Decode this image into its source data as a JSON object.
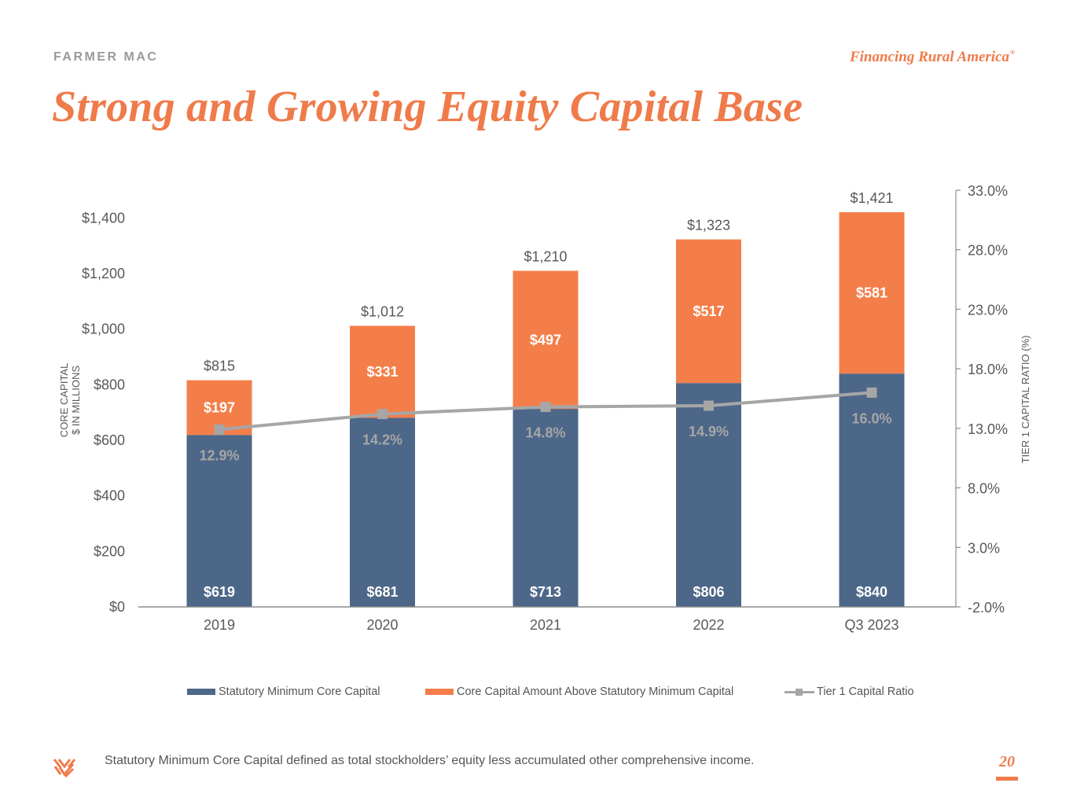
{
  "header": {
    "brand": "FARMER MAC",
    "tagline": "Financing Rural America",
    "tagline_mark": "®",
    "title": "Strong and Growing Equity Capital Base"
  },
  "colors": {
    "accent": "#ef7b4a",
    "statutory": "#4d6788",
    "above": "#f47e4a",
    "ratio": "#a6a6a6"
  },
  "chart_data": {
    "type": "bar",
    "stacked": true,
    "categories": [
      "2019",
      "2020",
      "2021",
      "2022",
      "Q3 2023"
    ],
    "series": [
      {
        "name": "Statutory Minimum Core Capital",
        "type": "bar",
        "axis": "left",
        "values": [
          619,
          681,
          713,
          806,
          840
        ],
        "labels": [
          "$619",
          "$681",
          "$713",
          "$806",
          "$840"
        ]
      },
      {
        "name": "Core Capital Amount Above Statutory Minimum Capital",
        "type": "bar",
        "axis": "left",
        "values": [
          197,
          331,
          497,
          517,
          581
        ],
        "labels": [
          "$197",
          "$331",
          "$497",
          "$517",
          "$581"
        ]
      },
      {
        "name": "Tier 1 Capital Ratio",
        "type": "line",
        "axis": "right",
        "values": [
          12.9,
          14.2,
          14.8,
          14.9,
          16.0
        ],
        "labels": [
          "12.9%",
          "14.2%",
          "14.8%",
          "14.9%",
          "16.0%"
        ]
      }
    ],
    "totals": [
      815,
      1012,
      1210,
      1323,
      1421
    ],
    "total_labels": [
      "$815",
      "$1,012",
      "$1,210",
      "$1,323",
      "$1,421"
    ],
    "ylabel_lines": [
      "CORE CAPITAL",
      "$ IN MILLIONS"
    ],
    "y2label": "TIER 1 CAPITAL RATIO (%)",
    "ylim": [
      0,
      1500
    ],
    "yticks": [
      0,
      200,
      400,
      600,
      800,
      1000,
      1200,
      1400
    ],
    "ytick_labels": [
      "$0",
      "$200",
      "$400",
      "$600",
      "$800",
      "$1,000",
      "$1,200",
      "$1,400"
    ],
    "y2lim": [
      -2.0,
      33.0
    ],
    "y2ticks": [
      -2,
      3,
      8,
      13,
      18,
      23,
      28,
      33
    ],
    "y2tick_labels": [
      "-2.0%",
      "3.0%",
      "8.0%",
      "13.0%",
      "18.0%",
      "23.0%",
      "28.0%",
      "33.0%"
    ],
    "legend_position": "bottom"
  },
  "footnote": "Statutory Minimum Core Capital defined as total stockholders’ equity less accumulated other comprehensive income.",
  "page_number": "20"
}
